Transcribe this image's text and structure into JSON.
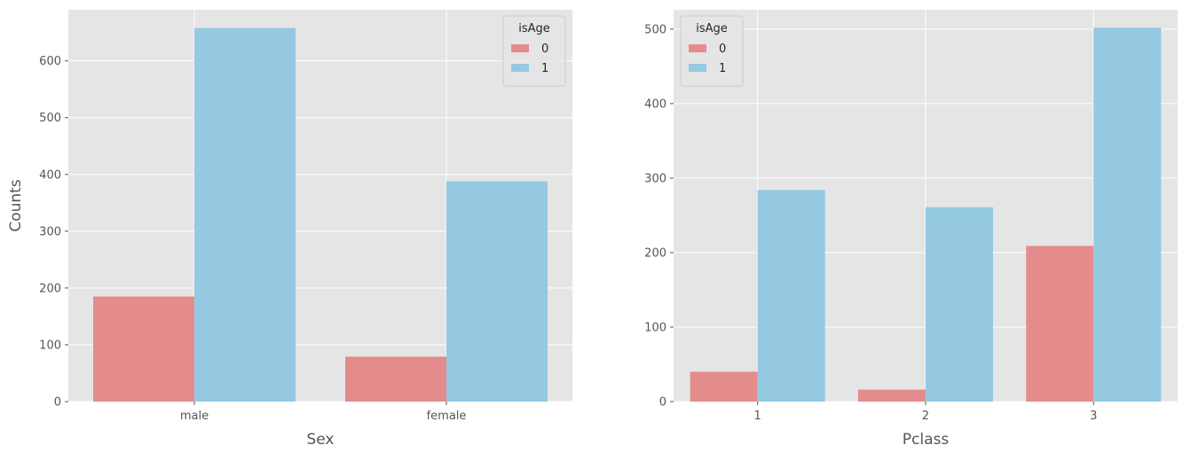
{
  "chart_data": [
    {
      "type": "bar",
      "title": "",
      "xlabel": "Sex",
      "ylabel": "Counts",
      "categories": [
        "male",
        "female"
      ],
      "ylim": [
        0,
        690
      ],
      "yticks": [
        0,
        100,
        200,
        300,
        400,
        500,
        600
      ],
      "grid": true,
      "legend": {
        "title": "isAge",
        "placement": "top-right"
      },
      "series": [
        {
          "name": "0",
          "color": "#e48b8b",
          "values": [
            185,
            79
          ]
        },
        {
          "name": "1",
          "color": "#95c9e1",
          "values": [
            658,
            388
          ]
        }
      ]
    },
    {
      "type": "bar",
      "title": "",
      "xlabel": "Pclass",
      "ylabel": "",
      "categories": [
        "1",
        "2",
        "3"
      ],
      "ylim": [
        0,
        526
      ],
      "yticks": [
        0,
        100,
        200,
        300,
        400,
        500
      ],
      "grid": true,
      "legend": {
        "title": "isAge",
        "placement": "top-left"
      },
      "series": [
        {
          "name": "0",
          "color": "#e48b8b",
          "values": [
            40,
            16,
            209
          ]
        },
        {
          "name": "1",
          "color": "#95c9e1",
          "values": [
            284,
            261,
            502
          ]
        }
      ]
    }
  ]
}
